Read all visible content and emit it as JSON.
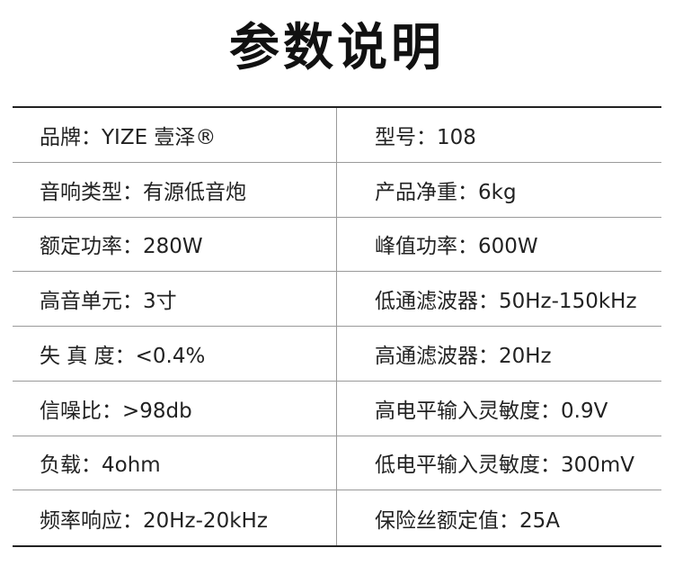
{
  "title": "参数说明",
  "rows": [
    {
      "left": "品牌：YIZE 壹泽®",
      "right": "型号：108"
    },
    {
      "left": "音响类型：有源低音炮",
      "right": "产品净重：6kg"
    },
    {
      "left": "额定功率：280W",
      "right": "峰值功率：600W"
    },
    {
      "left": "高音单元：3寸",
      "right": "低通滤波器：50Hz-150kHz"
    },
    {
      "left": "失 真 度：<0.4%",
      "right": "高通滤波器：20Hz"
    },
    {
      "left": "信噪比：>98db",
      "right": "高电平输入灵敏度：0.9V"
    },
    {
      "left": "负载：4ohm",
      "right": "低电平输入灵敏度：300mV"
    },
    {
      "left": "频率响应：20Hz-20kHz",
      "right": "保险丝额定值：25A"
    }
  ]
}
